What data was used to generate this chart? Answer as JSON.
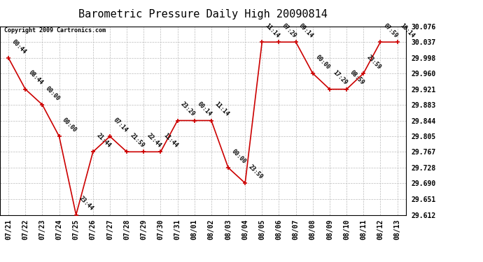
{
  "title": "Barometric Pressure Daily High 20090814",
  "copyright": "Copyright 2009 Cartronics.com",
  "dates": [
    "07/21",
    "07/22",
    "07/23",
    "07/24",
    "07/25",
    "07/26",
    "07/27",
    "07/28",
    "07/29",
    "07/30",
    "07/31",
    "08/01",
    "08/02",
    "08/03",
    "08/04",
    "08/05",
    "08/06",
    "08/07",
    "08/08",
    "08/09",
    "08/10",
    "08/11",
    "08/12",
    "08/13"
  ],
  "values": [
    29.998,
    29.921,
    29.883,
    29.805,
    29.612,
    29.767,
    29.805,
    29.767,
    29.767,
    29.767,
    29.844,
    29.844,
    29.844,
    29.728,
    29.69,
    30.037,
    30.037,
    30.037,
    29.96,
    29.921,
    29.921,
    29.96,
    30.037,
    30.037
  ],
  "times": [
    "00:44",
    "08:44",
    "00:00",
    "00:00",
    "23:44",
    "21:44",
    "07:14",
    "21:59",
    "22:44",
    "11:44",
    "23:29",
    "00:14",
    "11:14",
    "00:00",
    "23:59",
    "11:14",
    "07:29",
    "09:14",
    "00:00",
    "17:29",
    "08:59",
    "23:59",
    "07:59",
    "10:14"
  ],
  "ylim_min": 29.612,
  "ylim_max": 30.076,
  "yticks": [
    29.612,
    29.651,
    29.69,
    29.728,
    29.767,
    29.805,
    29.844,
    29.883,
    29.921,
    29.96,
    29.998,
    30.037,
    30.076
  ],
  "line_color": "#cc0000",
  "marker_color": "#cc0000",
  "bg_color": "#ffffff",
  "grid_color": "#bbbbbb",
  "title_fontsize": 11,
  "tick_fontsize": 7,
  "annotation_fontsize": 6,
  "copyright_fontsize": 6
}
